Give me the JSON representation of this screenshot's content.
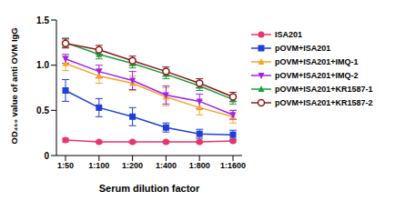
{
  "chart_data": {
    "type": "line",
    "x_label": "Serum dilution factor",
    "y_label": "OD₄₅₀ value of anti OVM IgG",
    "categories": [
      "1:50",
      "1:100",
      "1:200",
      "1:400",
      "1:800",
      "1:1600"
    ],
    "ylim": [
      0,
      1.5
    ],
    "yticks": [
      0,
      0.5,
      {
        "value": 1,
        "label": "1.0"
      },
      1.5
    ],
    "grid": false,
    "legend": "right",
    "series": [
      {
        "name": "ISA201",
        "color": "#e8336d",
        "marker": "circle",
        "values": [
          0.17,
          0.15,
          0.15,
          0.15,
          0.15,
          0.16
        ],
        "errors": [
          0.02,
          0.01,
          0.01,
          0.01,
          0.01,
          0.01
        ]
      },
      {
        "name": "pOVM+ISA201",
        "color": "#1f3fd6",
        "marker": "square",
        "values": [
          0.72,
          0.53,
          0.43,
          0.31,
          0.24,
          0.23
        ],
        "errors": [
          0.12,
          0.1,
          0.1,
          0.05,
          0.05,
          0.05
        ]
      },
      {
        "name": "pOVM+ISA201+IMQ-1",
        "color": "#f5a623",
        "marker": "triangle",
        "values": [
          1.02,
          0.88,
          0.8,
          0.65,
          0.53,
          0.43
        ],
        "errors": [
          0.08,
          0.08,
          0.08,
          0.1,
          0.08,
          0.07
        ]
      },
      {
        "name": "pOVM+ISA201+IMQ-2",
        "color": "#a020f0",
        "marker": "triangle-down",
        "values": [
          1.07,
          0.93,
          0.83,
          0.67,
          0.6,
          0.45
        ],
        "errors": [
          0.05,
          0.07,
          0.1,
          0.1,
          0.08,
          0.05
        ]
      },
      {
        "name": "pOVM+ISA201+KR1587-1",
        "color": "#1a9e3a",
        "marker": "triangle",
        "values": [
          1.25,
          1.12,
          1.02,
          0.9,
          0.77,
          0.62
        ],
        "errors": [
          0.05,
          0.05,
          0.05,
          0.05,
          0.05,
          0.05
        ]
      },
      {
        "name": "pOVM+ISA201+KR1587-2",
        "color": "#8b1a1a",
        "marker": "circle-open",
        "values": [
          1.24,
          1.17,
          1.05,
          0.93,
          0.8,
          0.65
        ],
        "errors": [
          0.05,
          0.05,
          0.05,
          0.05,
          0.05,
          0.05
        ]
      }
    ]
  }
}
